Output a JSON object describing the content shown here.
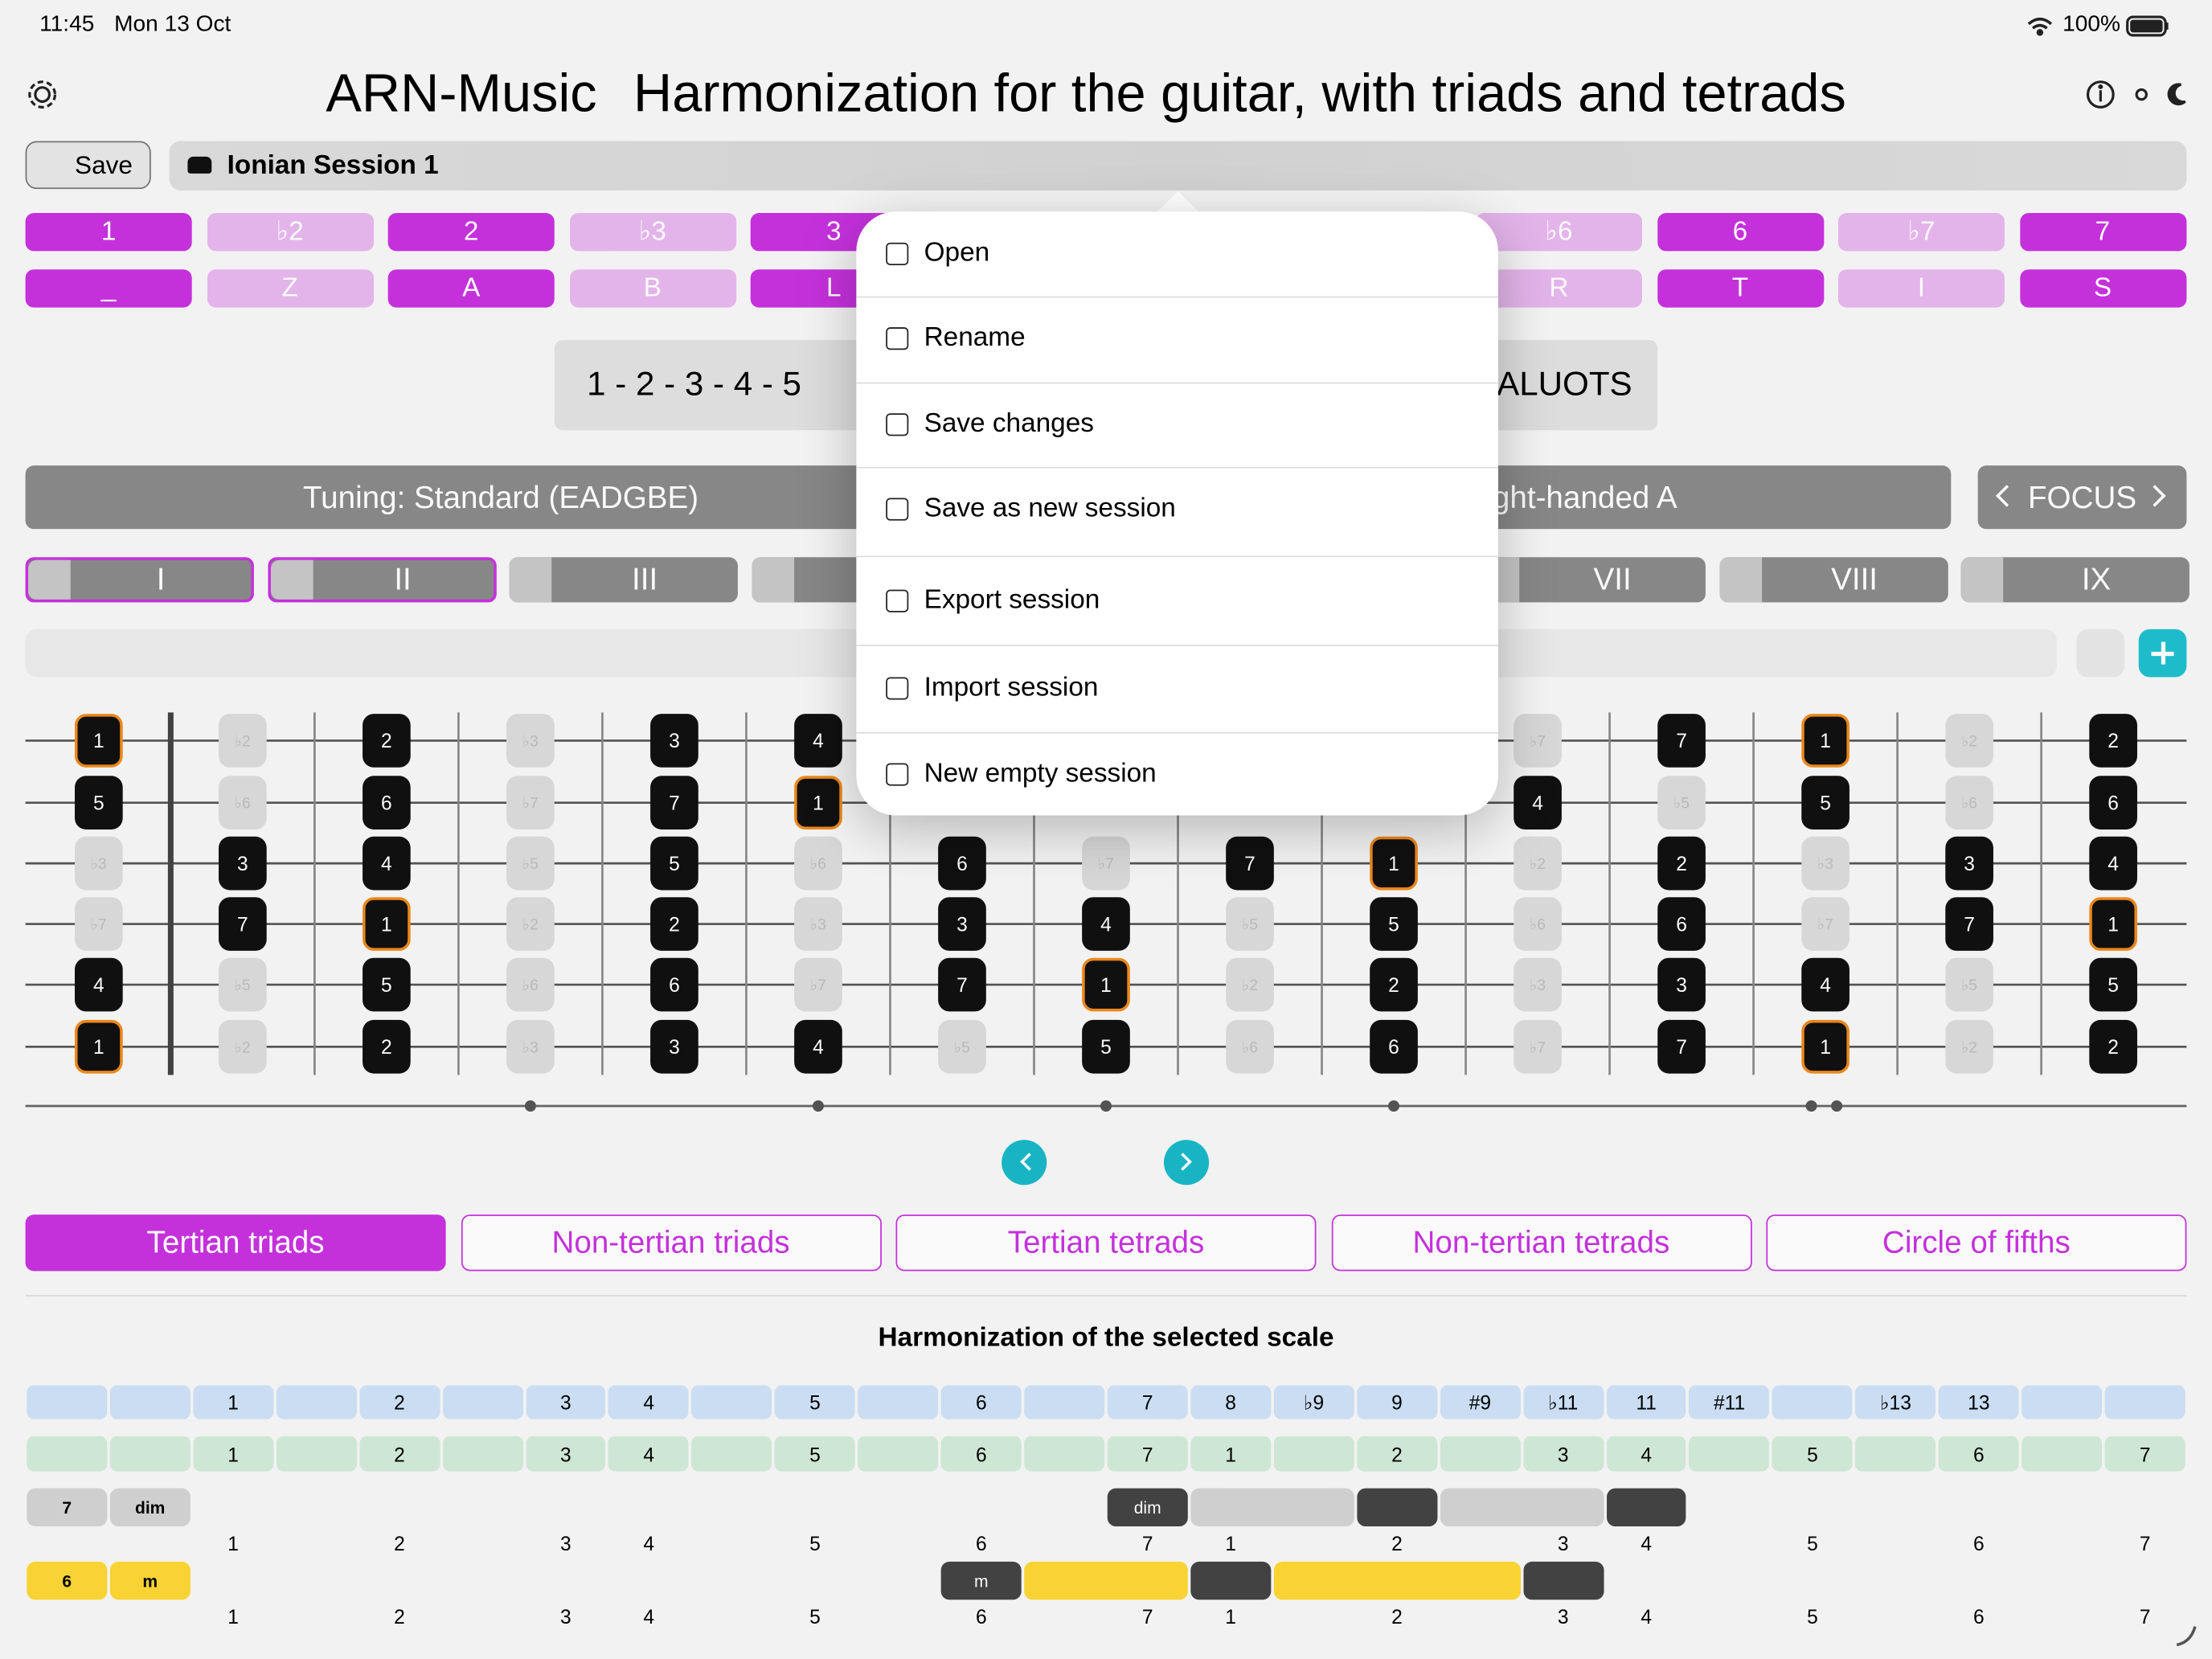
{
  "status": {
    "time": "11:45",
    "date": "Mon 13 Oct",
    "battery": "100%"
  },
  "header": {
    "app": "ARN-Music",
    "title": "Harmonization for the guitar, with triads and tetrads"
  },
  "toolbar": {
    "save": "Save",
    "session": "Ionian Session 1"
  },
  "degrees": [
    "1",
    "♭2",
    "2",
    "♭3",
    "3",
    null,
    null,
    null,
    "♭6",
    "6",
    "♭7",
    "7"
  ],
  "letters": [
    "_",
    "Z",
    "A",
    "B",
    "L",
    null,
    null,
    null,
    "R",
    "T",
    "I",
    "S"
  ],
  "formula": {
    "degrees": "1 - 2 - 3 - 4 - 5",
    "letters": "_ALUOTS"
  },
  "tuning": {
    "label": "Tuning: Standard (EADGBE)",
    "hand": "ght-handed A",
    "focus": "FOCUS"
  },
  "positions": [
    "I",
    "II",
    "III",
    null,
    null,
    null,
    "VII",
    "VIII",
    "IX"
  ],
  "fretboard": [
    [
      "1",
      "♭2",
      "2",
      "♭3",
      "3",
      "4",
      null,
      null,
      null,
      null,
      "♭7",
      "7",
      "1",
      "♭2",
      "2"
    ],
    [
      "5",
      "♭6",
      "6",
      "♭7",
      "7",
      "1",
      null,
      null,
      null,
      null,
      "4",
      "♭5",
      "5",
      "♭6",
      "6"
    ],
    [
      "♭3",
      "3",
      "4",
      "♭5",
      "5",
      "♭6",
      "6",
      "♭7",
      "7",
      "1",
      "♭2",
      "2",
      "♭3",
      "3",
      "4"
    ],
    [
      "♭7",
      "7",
      "1",
      "♭2",
      "2",
      "♭3",
      "3",
      "4",
      "♭5",
      "5",
      "♭6",
      "6",
      "♭7",
      "7",
      "1"
    ],
    [
      "4",
      "♭5",
      "5",
      "♭6",
      "6",
      "♭7",
      "7",
      "1",
      "♭2",
      "2",
      "♭3",
      "3",
      "4",
      "♭5",
      "5"
    ],
    [
      "1",
      "♭2",
      "2",
      "♭3",
      "3",
      "4",
      "♭5",
      "5",
      "♭6",
      "6",
      "♭7",
      "7",
      "1",
      "♭2",
      "2"
    ]
  ],
  "tabs": [
    "Tertian triads",
    "Non-tertian triads",
    "Tertian tetrads",
    "Non-tertian tetrads",
    "Circle of fifths"
  ],
  "harmonization": {
    "title": "Harmonization of the selected scale",
    "intervals": [
      null,
      null,
      "1",
      null,
      "2",
      null,
      "3",
      "4",
      null,
      "5",
      null,
      "6",
      null,
      "7",
      "8",
      "♭9",
      "9",
      "#9",
      "♭11",
      "11",
      "#11",
      null,
      "♭13",
      "13",
      null,
      null
    ],
    "scale": [
      null,
      null,
      "1",
      null,
      "2",
      null,
      "3",
      "4",
      null,
      "5",
      null,
      "6",
      null,
      "7",
      "1",
      null,
      "2",
      null,
      "3",
      "4",
      null,
      "5",
      null,
      "6",
      null,
      "7"
    ],
    "chords": [
      {
        "degree": "7",
        "quality": "dim",
        "color": "#d4d4d4"
      },
      {
        "degree": "6",
        "quality": "m",
        "color": "#fdd835"
      }
    ]
  },
  "menu": [
    "Open",
    "Rename",
    "Save changes",
    "Save as new session",
    "Export session",
    "Import session",
    "New empty session"
  ]
}
